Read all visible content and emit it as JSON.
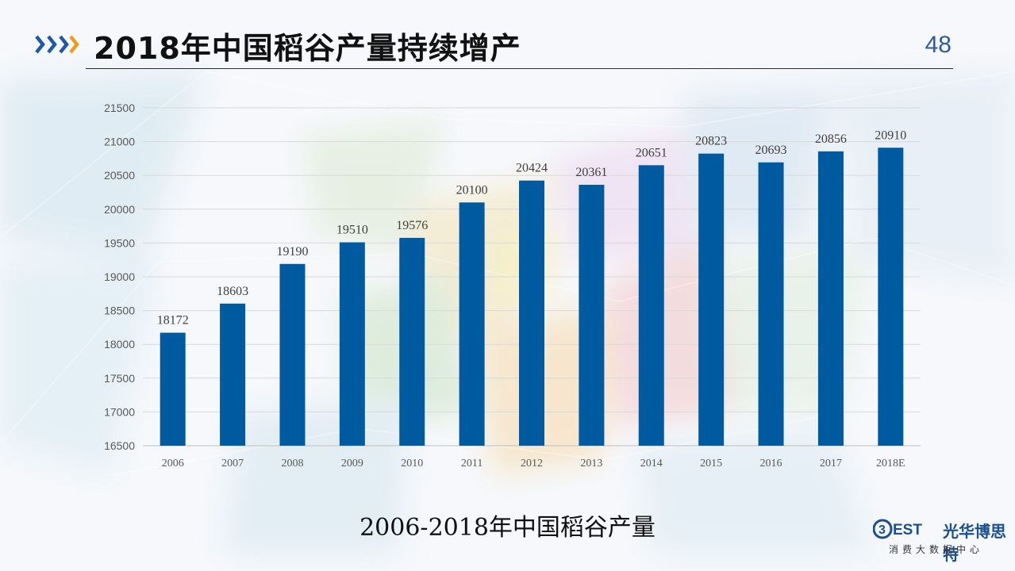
{
  "header": {
    "title": "2018年中国稻谷产量持续增产",
    "page_number": "48"
  },
  "chart_data": {
    "type": "bar",
    "categories": [
      "2006",
      "2007",
      "2008",
      "2009",
      "2010",
      "2011",
      "2012",
      "2013",
      "2014",
      "2015",
      "2016",
      "2017",
      "2018E"
    ],
    "values": [
      18172,
      18603,
      19190,
      19510,
      19576,
      20100,
      20424,
      20361,
      20651,
      20823,
      20693,
      20856,
      20910
    ],
    "ylim": [
      16500,
      21500
    ],
    "yticks": [
      16500,
      17000,
      17500,
      18000,
      18500,
      19000,
      19500,
      20000,
      20500,
      21000,
      21500
    ],
    "grid": true,
    "bar_color": "#005aa0",
    "title": "",
    "xlabel": "",
    "ylabel": ""
  },
  "caption": "2006-2018年中国稻谷产量",
  "logo": {
    "mark_text": "BEST",
    "name": "光华博思特",
    "subtitle": "消费大数据中心"
  },
  "colors": {
    "accent_blue": "#1e5aa8",
    "accent_orange": "#f39a1e",
    "page_number": "#2e5d9a"
  }
}
